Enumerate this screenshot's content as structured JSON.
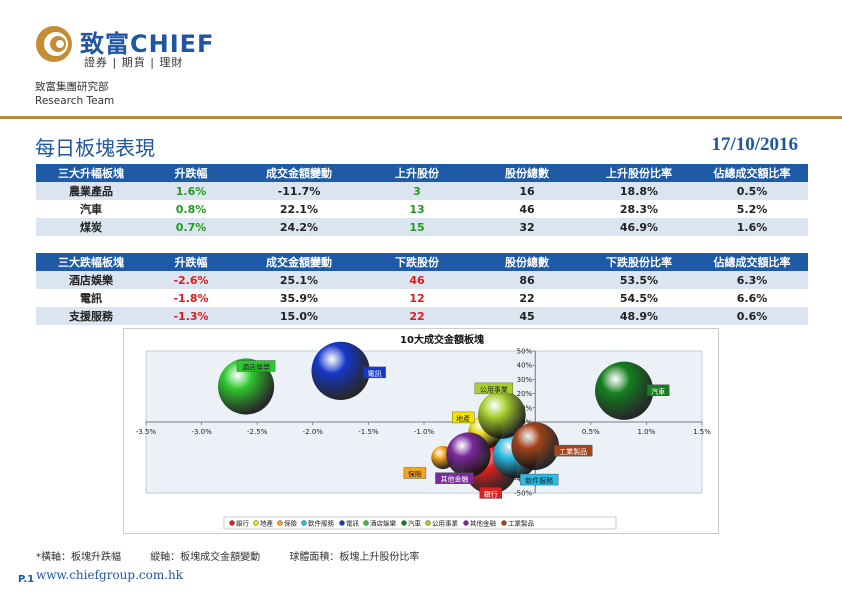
{
  "brand": {
    "name": "致富CHIEF",
    "sub": "證券 | 期貨 | 理財"
  },
  "team": {
    "line1": "致富集團研究部",
    "line2": "Research Team"
  },
  "page": {
    "title": "每日板塊表現",
    "date": "17/10/2016",
    "number": "P.1",
    "url": "www.chiefgroup.com.hk"
  },
  "up_table": {
    "headers": [
      "三大升幅板塊",
      "升跌幅",
      "成交金額變動",
      "上升股份",
      "股份總數",
      "上升股份比率",
      "佔總成交額比率"
    ],
    "rows": [
      [
        "農業產品",
        "1.6%",
        "-11.7%",
        "3",
        "16",
        "18.8%",
        "0.5%"
      ],
      [
        "汽車",
        "0.8%",
        "22.1%",
        "13",
        "46",
        "28.3%",
        "5.2%"
      ],
      [
        "煤炭",
        "0.7%",
        "24.2%",
        "15",
        "32",
        "46.9%",
        "1.6%"
      ]
    ]
  },
  "down_table": {
    "headers": [
      "三大跌幅板塊",
      "升跌幅",
      "成交金額變動",
      "下跌股份",
      "股份總數",
      "下跌股份比率",
      "佔總成交額比率"
    ],
    "rows": [
      [
        "酒店娛樂",
        "-2.6%",
        "25.1%",
        "46",
        "86",
        "53.5%",
        "6.3%"
      ],
      [
        "電訊",
        "-1.8%",
        "35.9%",
        "12",
        "22",
        "54.5%",
        "6.6%"
      ],
      [
        "支援服務",
        "-1.3%",
        "15.0%",
        "22",
        "45",
        "48.9%",
        "0.6%"
      ]
    ]
  },
  "footnote": {
    "x": "*橫軸：板塊升跌幅",
    "y": "縱軸：板塊成交金額變動",
    "size": "球體面積：板塊上升股份比率"
  },
  "colors": {
    "accent": "#1e5aa6",
    "gold": "#b68a3e",
    "up": "#1f9b1f",
    "down": "#e21a1a"
  },
  "chart_data": {
    "type": "scatter",
    "title": "10大成交金額板塊",
    "xticks": [
      "-3.5%",
      "-3.0%",
      "-2.5%",
      "-2.0%",
      "-1.5%",
      "-1.0%",
      "-0.5%",
      "0.0%",
      "0.5%",
      "1.0%",
      "1.5%"
    ],
    "yticks": [
      "50%",
      "40%",
      "30%",
      "20%",
      "10%",
      "0%",
      "-10%",
      "-20%",
      "-30%",
      "-40%",
      "-50%"
    ],
    "xlim": [
      -3.5,
      1.5
    ],
    "ylim": [
      -50,
      50
    ],
    "legend_position": "bottom",
    "series": [
      {
        "name": "銀行",
        "x": -0.4,
        "y": -32,
        "r": 0.5,
        "color": "#e02020",
        "label_color": "#e02020",
        "label_text": "#ffffff"
      },
      {
        "name": "地產",
        "x": -0.45,
        "y": -7,
        "r": 0.32,
        "color": "#e8e020",
        "label_color": "#f2e400",
        "label_text": "#222222"
      },
      {
        "name": "保險",
        "x": -0.83,
        "y": -25,
        "r": 0.22,
        "color": "#f5a41e",
        "label_color": "#f5a41e",
        "label_text": "#222222"
      },
      {
        "name": "軟件服務",
        "x": -0.18,
        "y": -24,
        "r": 0.42,
        "color": "#29bde6",
        "label_color": "#29bde6",
        "label_text": "#222222"
      },
      {
        "name": "電訊",
        "x": -1.75,
        "y": 36,
        "r": 0.55,
        "color": "#1438c8",
        "label_color": "#1438c8",
        "label_text": "#ffffff"
      },
      {
        "name": "酒店娛樂",
        "x": -2.6,
        "y": 25,
        "r": 0.53,
        "color": "#2ec82e",
        "label_color": "#2ec82e",
        "label_text": "#222222"
      },
      {
        "name": "汽車",
        "x": 0.8,
        "y": 22,
        "r": 0.55,
        "color": "#15801f",
        "label_color": "#15801f",
        "label_text": "#ffffff"
      },
      {
        "name": "公用事業",
        "x": -0.3,
        "y": 5,
        "r": 0.45,
        "color": "#a8cf2e",
        "label_color": "#a8cf2e",
        "label_text": "#222222"
      },
      {
        "name": "其他金融",
        "x": -0.6,
        "y": -23,
        "r": 0.42,
        "color": "#7a2a9c",
        "label_color": "#7a2a9c",
        "label_text": "#ffffff"
      },
      {
        "name": "工業製品",
        "x": 0.0,
        "y": -17,
        "r": 0.45,
        "color": "#a4441a",
        "label_color": "#a4441a",
        "label_text": "#ffffff"
      }
    ]
  }
}
